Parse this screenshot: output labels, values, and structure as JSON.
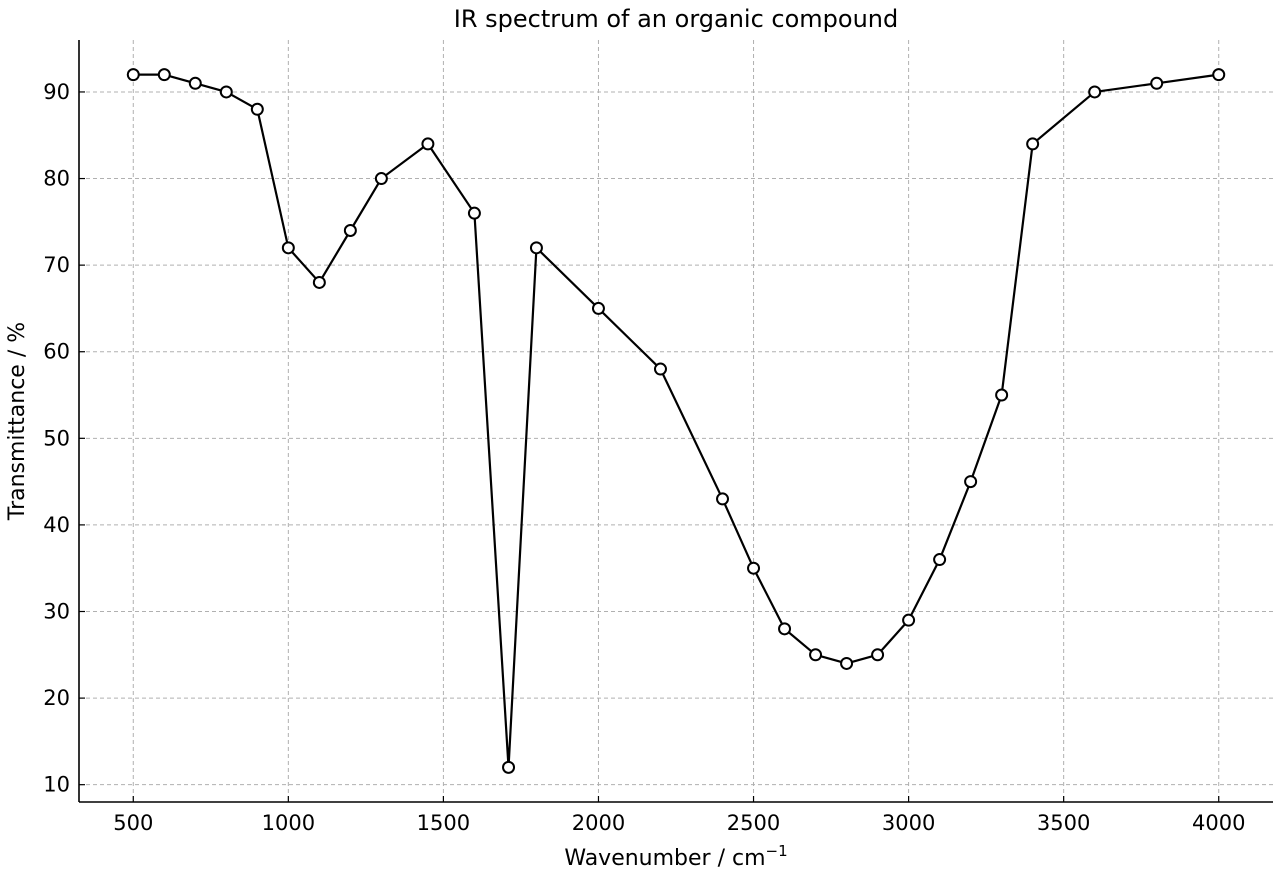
{
  "chart_data": {
    "type": "line",
    "title": "IR spectrum of an organic compound",
    "xlabel": "Wavenumber / cm",
    "xlabel_superscript": "−1",
    "ylabel": "Transmittance / %",
    "xlim": [
      325,
      4175
    ],
    "ylim": [
      8,
      96
    ],
    "xticks": [
      500,
      1000,
      1500,
      2000,
      2500,
      3000,
      3500,
      4000
    ],
    "yticks": [
      10,
      20,
      30,
      40,
      50,
      60,
      70,
      80,
      90
    ],
    "grid": true,
    "series": [
      {
        "x": [
          500,
          600,
          700,
          800,
          900,
          1000,
          1100,
          1200,
          1300,
          1450,
          1600,
          1710,
          1800,
          2000,
          2200,
          2400,
          2500,
          2600,
          2700,
          2800,
          2900,
          3000,
          3100,
          3200,
          3300,
          3400,
          3600,
          3800,
          4000
        ],
        "y": [
          92,
          92,
          91,
          90,
          88,
          72,
          68,
          74,
          80,
          84,
          76,
          12,
          72,
          65,
          58,
          43,
          35,
          28,
          25,
          24,
          25,
          29,
          36,
          45,
          55,
          84,
          90,
          91,
          92
        ]
      }
    ]
  }
}
